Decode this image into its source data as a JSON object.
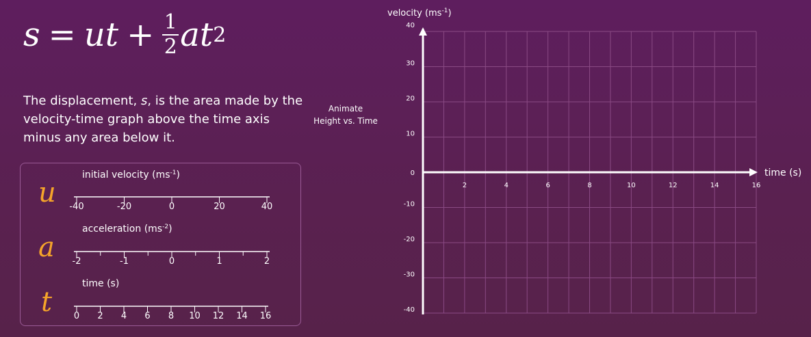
{
  "formula": {
    "s": "s",
    "equals": "=",
    "ut": "ut",
    "plus": "+",
    "num": "1",
    "den": "2",
    "at": "at",
    "sq": "2"
  },
  "description": {
    "part1": "The displacement, ",
    "var": "s",
    "part2": ", is the area made by the velocity-time graph above the time axis minus any area below it."
  },
  "sliders": [
    {
      "var": "u",
      "title": "initial velocity (ms",
      "title_sup": "-1",
      "title_end": ")",
      "ticks": [
        "-40",
        "-20",
        "0",
        "20",
        "40"
      ],
      "minor_per_major": 1
    },
    {
      "var": "a",
      "title": "acceleration (ms",
      "title_sup": "-2",
      "title_end": ")",
      "ticks": [
        "-2",
        "-1",
        "0",
        "1",
        "2"
      ],
      "minor_per_major": 2
    },
    {
      "var": "t",
      "title": "time (s)",
      "title_sup": "",
      "title_end": "",
      "ticks": [
        "0",
        "2",
        "4",
        "6",
        "8",
        "10",
        "12",
        "14",
        "16"
      ],
      "minor_per_major": 1
    }
  ],
  "animate": {
    "line1": "Animate",
    "line2": "Height vs. Time"
  },
  "graph": {
    "y_title": "velocity (ms",
    "y_title_sup": "-1",
    "y_title_end": ")",
    "x_title": "time (s)",
    "y_ticks": [
      "40",
      "30",
      "20",
      "10",
      "0",
      "-10",
      "-20",
      "-30",
      "-40"
    ],
    "x_ticks": [
      "2",
      "4",
      "6",
      "8",
      "10",
      "12",
      "14",
      "16"
    ]
  },
  "chart_data": {
    "type": "line",
    "xlabel": "time (s)",
    "ylabel": "velocity (ms-1)",
    "xlim": [
      0,
      16
    ],
    "ylim": [
      -40,
      40
    ],
    "grid": true,
    "series": []
  },
  "colors": {
    "accent": "#f5a42a",
    "background": "#5a2150",
    "grid": "#8a4a84"
  }
}
